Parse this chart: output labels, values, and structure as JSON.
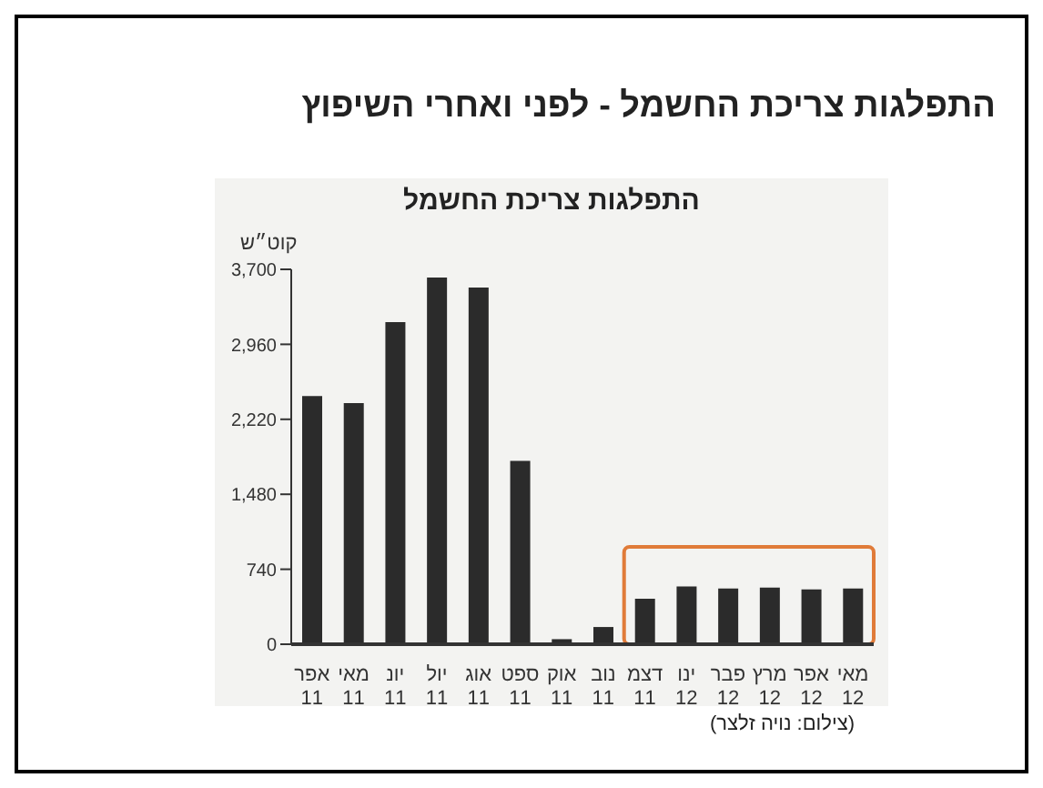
{
  "chart_data": {
    "type": "bar",
    "title": "התפלגות צריכת החשמל - לפני ואחרי השיפוץ",
    "subtitle": "התפלגות צריכת החשמל",
    "ylabel": "קוט״ש",
    "categories": [
      "אפר 11",
      "מאי 11",
      "יונ 11",
      "יול 11",
      "אוג 11",
      "ספט 11",
      "אוק 11",
      "נוב 11",
      "דצמ 11",
      "ינו 12",
      "פבר 12",
      "מרץ 12",
      "אפר 12",
      "מאי 12"
    ],
    "values": [
      2450,
      2380,
      3180,
      3620,
      3520,
      1810,
      50,
      170,
      450,
      570,
      550,
      560,
      540,
      550
    ],
    "color": "#2b2b2b",
    "ylim": [
      0,
      3700
    ],
    "yticks": [
      0,
      {
        "value": 740,
        "label": "740"
      },
      {
        "value": 1480,
        "label": "1,480"
      },
      {
        "value": 2220,
        "label": "2,220"
      },
      {
        "value": 2960,
        "label": "2,960"
      },
      {
        "value": 3700,
        "label": "3,700"
      }
    ],
    "annotations": [
      "(צילום: נויה זלצר)"
    ]
  }
}
